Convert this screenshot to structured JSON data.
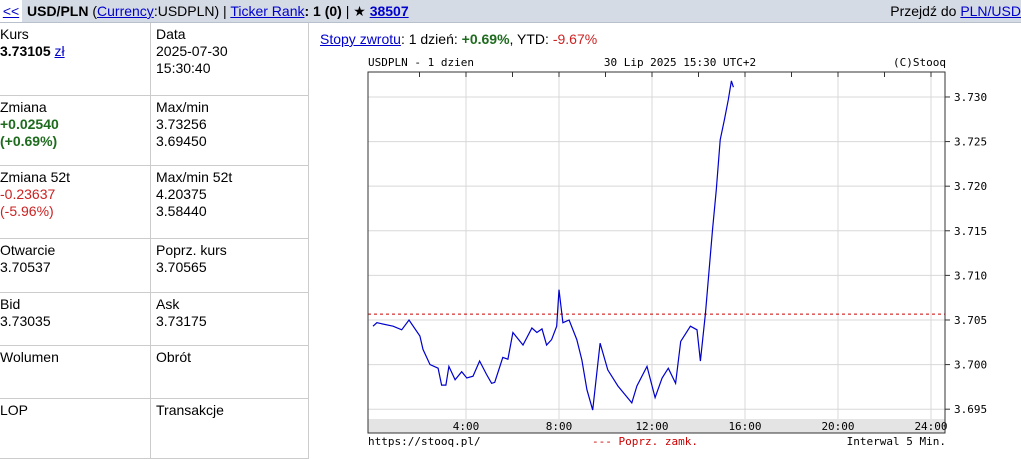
{
  "header": {
    "back": "<<",
    "symbol": "USD/PLN",
    "open_paren": " (",
    "category_link": "Currency",
    "code": ":USDPLN) | ",
    "rank_link": "Ticker Rank",
    "rank_value": ": 1 (0)",
    "star": " | ★ ",
    "favorites_link": "38507",
    "goto_label": "Przejdź do ",
    "goto_link": "PLN/USD"
  },
  "quote": {
    "kurs_label": "Kurs",
    "kurs_value": "3.73105",
    "kurs_currency": "zł",
    "data_label": "Data",
    "date": "2025-07-30",
    "time": "15:30:40",
    "zmiana_label": "Zmiana",
    "zmiana_value": "+0.02540",
    "zmiana_pct": "(+0.69%)",
    "maxmin_label": "Max/min",
    "max": "3.73256",
    "min": "3.69450",
    "zmiana52_label": "Zmiana 52t",
    "zmiana52_value": "-0.23637",
    "zmiana52_pct": "(-5.96%)",
    "maxmin52_label": "Max/min 52t",
    "max52": "4.20375",
    "min52": "3.58440",
    "open_label": "Otwarcie",
    "open_value": "3.70537",
    "prev_label": "Poprz. kurs",
    "prev_value": "3.70565",
    "bid_label": "Bid",
    "bid_value": "3.73035",
    "ask_label": "Ask",
    "ask_value": "3.73175",
    "volume_label": "Wolumen",
    "turnover_label": "Obrót",
    "lop_label": "LOP",
    "trades_label": "Transakcje"
  },
  "returns": {
    "link": "Stopy zwrotu",
    "day_label": ": 1 dzień: ",
    "day_value": "+0.69%",
    "ytd_label": ", YTD: ",
    "ytd_value": "-9.67%"
  },
  "chart_data": {
    "type": "line",
    "title_left": "USDPLN - 1 dzien",
    "title_center": "30 Lip 2025 15:30 UTC+2",
    "copyright": "(C)Stooq",
    "footer_url": "https://stooq.pl/",
    "legend_prev_close": "--- Poprz. zamk.",
    "interval": "Interwal 5 Min.",
    "x_ticks": [
      "4:00",
      "8:00",
      "12:00",
      "16:00",
      "20:00",
      "24:00"
    ],
    "y_ticks": [
      "3.695",
      "3.700",
      "3.705",
      "3.710",
      "3.715",
      "3.720",
      "3.725",
      "3.730"
    ],
    "ylim": [
      3.6939,
      3.7328
    ],
    "xlim_hours": [
      0,
      24
    ],
    "prev_close": 3.70565,
    "colors": {
      "line": "#0000cc",
      "prev_close": "#cc0000",
      "grid": "#d8d8d8"
    },
    "series": [
      {
        "x": [
          "0:00",
          "0:10",
          "0:52",
          "1:14",
          "1:33",
          "2:01",
          "2:09",
          "2:27",
          "2:48",
          "2:57",
          "3:08",
          "3:16",
          "3:32",
          "3:49",
          "4:02",
          "4:18",
          "4:35",
          "4:53",
          "5:06",
          "5:14",
          "5:35",
          "5:48",
          "6:01",
          "6:27",
          "6:50",
          "7:03",
          "7:16",
          "7:28",
          "7:41",
          "7:54",
          "8:00",
          "8:10",
          "8:26",
          "8:46",
          "8:59",
          "9:12",
          "9:27",
          "9:46",
          "10:06",
          "10:32",
          "11:08",
          "11:21",
          "11:47",
          "12:08",
          "12:26",
          "12:42",
          "13:01",
          "13:14",
          "13:39",
          "13:56",
          "14:05",
          "14:18",
          "14:36",
          "14:46",
          "14:56",
          "15:07",
          "15:17",
          "15:25",
          "15:30"
        ],
        "y": [
          3.7043,
          3.7047,
          3.7043,
          3.7039,
          3.705,
          3.7032,
          3.7017,
          3.7,
          3.6996,
          3.6977,
          3.6977,
          3.6998,
          3.6983,
          3.6992,
          3.6985,
          3.6987,
          3.7004,
          3.6989,
          3.6979,
          3.698,
          3.7008,
          3.7006,
          3.7036,
          3.7022,
          3.7041,
          3.7036,
          3.704,
          3.7022,
          3.7028,
          3.7043,
          3.7084,
          3.7047,
          3.705,
          3.7028,
          3.7005,
          3.6972,
          3.6949,
          3.7024,
          3.6994,
          3.6976,
          3.6957,
          3.6976,
          3.6998,
          3.6963,
          3.6985,
          3.6996,
          3.6979,
          3.7026,
          3.7043,
          3.7039,
          3.7004,
          3.7058,
          3.7151,
          3.7196,
          3.7252,
          3.7275,
          3.7297,
          3.7318,
          3.7311
        ]
      }
    ]
  }
}
